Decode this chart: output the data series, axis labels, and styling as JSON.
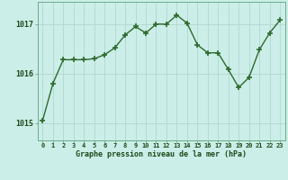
{
  "x": [
    0,
    1,
    2,
    3,
    4,
    5,
    6,
    7,
    8,
    9,
    10,
    11,
    12,
    13,
    14,
    15,
    16,
    17,
    18,
    19,
    20,
    21,
    22,
    23
  ],
  "y": [
    1015.05,
    1015.8,
    1016.28,
    1016.28,
    1016.28,
    1016.3,
    1016.38,
    1016.52,
    1016.78,
    1016.95,
    1016.82,
    1017.0,
    1017.0,
    1017.18,
    1017.02,
    1016.58,
    1016.42,
    1016.42,
    1016.08,
    1015.72,
    1015.92,
    1016.48,
    1016.82,
    1017.08
  ],
  "line_color": "#2d6a2d",
  "marker_color": "#2d6a2d",
  "bg_color": "#cceee8",
  "grid_color": "#b0d8d0",
  "xlabel": "Graphe pression niveau de la mer (hPa)",
  "xlabel_color": "#1a4a1a",
  "tick_label_color": "#1a4a1a",
  "yticks": [
    1015,
    1016,
    1017
  ],
  "ylim": [
    1014.65,
    1017.45
  ],
  "xlim": [
    -0.5,
    23.5
  ],
  "xtick_labels": [
    "0",
    "1",
    "2",
    "3",
    "4",
    "5",
    "6",
    "7",
    "8",
    "9",
    "10",
    "11",
    "12",
    "13",
    "14",
    "15",
    "16",
    "17",
    "18",
    "19",
    "20",
    "21",
    "22",
    "23"
  ]
}
